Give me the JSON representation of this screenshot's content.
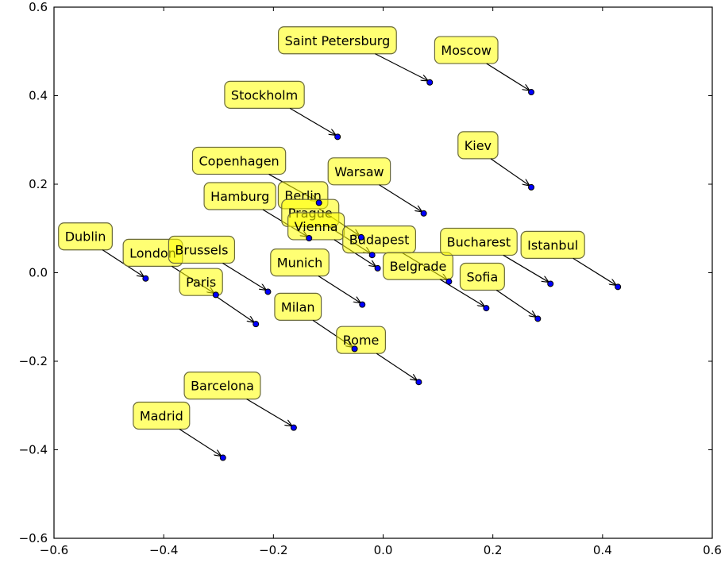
{
  "chart_data": {
    "type": "scatter",
    "title": "",
    "xlabel": "",
    "ylabel": "",
    "xlim": [
      -0.6,
      0.6
    ],
    "ylim": [
      -0.6,
      0.6
    ],
    "xticks": [
      -0.6,
      -0.4,
      -0.2,
      0.0,
      0.2,
      0.4,
      0.6
    ],
    "yticks": [
      -0.6,
      -0.4,
      -0.2,
      0.0,
      0.2,
      0.4,
      0.6
    ],
    "xtick_labels": [
      "−0.6",
      "−0.4",
      "−0.2",
      "0.0",
      "0.2",
      "0.4",
      "0.6"
    ],
    "ytick_labels": [
      "−0.6",
      "−0.4",
      "−0.2",
      "0.0",
      "0.2",
      "0.4",
      "0.6"
    ],
    "grid": false,
    "point_color": "#0000ff",
    "label_color": "#ffff00",
    "points": [
      {
        "label": "Saint Petersburg",
        "x": 0.085,
        "y": 0.43
      },
      {
        "label": "Moscow",
        "x": 0.27,
        "y": 0.408
      },
      {
        "label": "Stockholm",
        "x": -0.083,
        "y": 0.307
      },
      {
        "label": "Kiev",
        "x": 0.27,
        "y": 0.193
      },
      {
        "label": "Copenhagen",
        "x": -0.117,
        "y": 0.158
      },
      {
        "label": "Warsaw",
        "x": 0.074,
        "y": 0.134
      },
      {
        "label": "Berlin",
        "x": -0.04,
        "y": 0.08
      },
      {
        "label": "Hamburg",
        "x": -0.135,
        "y": 0.078
      },
      {
        "label": "Prague",
        "x": -0.02,
        "y": 0.04
      },
      {
        "label": "Vienna",
        "x": -0.01,
        "y": 0.01
      },
      {
        "label": "Budapest",
        "x": 0.12,
        "y": -0.02
      },
      {
        "label": "Belgrade",
        "x": 0.188,
        "y": -0.08
      },
      {
        "label": "Bucharest",
        "x": 0.305,
        "y": -0.025
      },
      {
        "label": "Istanbul",
        "x": 0.428,
        "y": -0.032
      },
      {
        "label": "Sofia",
        "x": 0.282,
        "y": -0.104
      },
      {
        "label": "Dublin",
        "x": -0.433,
        "y": -0.013
      },
      {
        "label": "London",
        "x": -0.305,
        "y": -0.05
      },
      {
        "label": "Brussels",
        "x": -0.21,
        "y": -0.043
      },
      {
        "label": "Paris",
        "x": -0.232,
        "y": -0.116
      },
      {
        "label": "Munich",
        "x": -0.038,
        "y": -0.072
      },
      {
        "label": "Milan",
        "x": -0.052,
        "y": -0.172
      },
      {
        "label": "Rome",
        "x": 0.065,
        "y": -0.247
      },
      {
        "label": "Barcelona",
        "x": -0.163,
        "y": -0.35
      },
      {
        "label": "Madrid",
        "x": -0.292,
        "y": -0.418
      }
    ]
  }
}
